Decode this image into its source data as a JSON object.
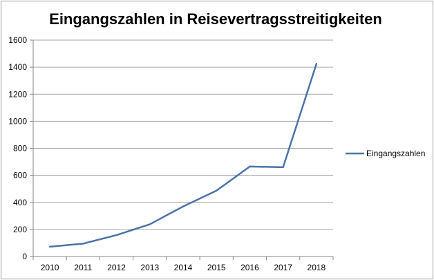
{
  "chart_data": {
    "type": "line",
    "title": "Eingangszahlen in Reisevertragsstreitigkeiten",
    "xlabel": "",
    "ylabel": "",
    "categories": [
      "2010",
      "2011",
      "2012",
      "2013",
      "2014",
      "2015",
      "2016",
      "2017",
      "2018"
    ],
    "series": [
      {
        "name": "Eingangszahlen",
        "values": [
          72,
          95,
          158,
          238,
          370,
          487,
          665,
          660,
          1425
        ],
        "color": "#4a73a8"
      }
    ],
    "ylim": [
      0,
      1600
    ],
    "yticks": [
      0,
      200,
      400,
      600,
      800,
      1000,
      1200,
      1400,
      1600
    ],
    "grid": true,
    "legend": "right"
  }
}
